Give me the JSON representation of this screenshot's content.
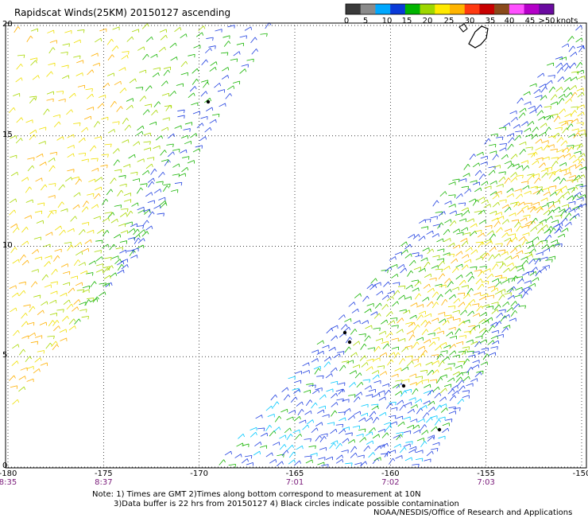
{
  "title": "Rapidscat Winds(25KM) 20150127 ascending",
  "colorbar": {
    "labels": [
      "0",
      "5",
      "10",
      "15",
      "20",
      "25",
      "30",
      "35",
      "40",
      "45",
      ">50"
    ],
    "units": "knots",
    "colors": [
      "#3a3a3a",
      "#8a8a8a",
      "#00a8ff",
      "#0a3ad8",
      "#00b400",
      "#9ed700",
      "#ffe900",
      "#ffb400",
      "#ff3a10",
      "#c80000",
      "#8a4a1a",
      "#ff50ff",
      "#b400c8",
      "#6a0aa0"
    ]
  },
  "y_axis": {
    "labels": [
      "20",
      "15",
      "10",
      "5",
      "0"
    ],
    "values": [
      20,
      15,
      10,
      5,
      0
    ]
  },
  "x_axis": {
    "labels": [
      "-180",
      "-175",
      "-170",
      "-165",
      "-160",
      "-155",
      "-150"
    ],
    "values": [
      -180,
      -175,
      -170,
      -165,
      -160,
      -155,
      -150
    ]
  },
  "time_labels": [
    {
      "label": "8:35",
      "lon": -180
    },
    {
      "label": "8:37",
      "lon": -175
    },
    {
      "label": "7:01",
      "lon": -165
    },
    {
      "label": "7:02",
      "lon": -160
    },
    {
      "label": "7:03",
      "lon": -155
    }
  ],
  "notes": {
    "line1": "Note: 1) Times are GMT 2)Times along bottom correspond to measurement at 10N",
    "line2": "3)Data buffer is 22 hrs from 20150127 4) Black circles indicate possible contamination",
    "credit": "NOAA/NESDIS/Office of Research and Applications"
  },
  "legend_speed_colors": {
    "light": "#00c8ff",
    "blue": "#1f3fe0",
    "green": "#16b400",
    "lime": "#a8d800",
    "yellow": "#f0e000",
    "orange": "#ffb000"
  }
}
